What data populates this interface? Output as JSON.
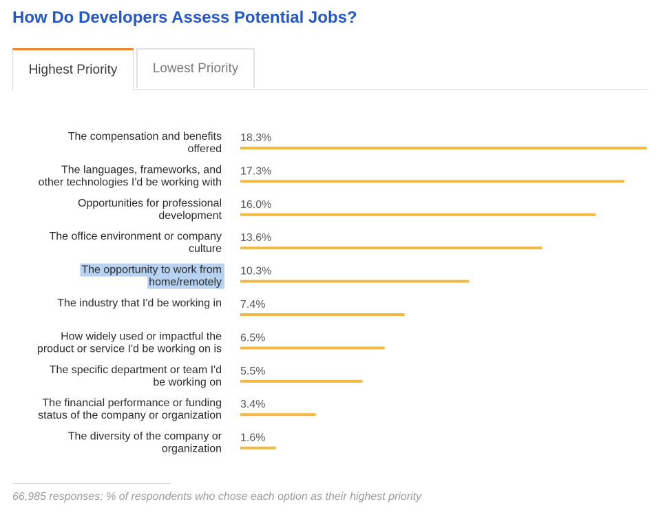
{
  "page": {
    "title": "How Do Developers Assess Potential Jobs?"
  },
  "tabs": [
    {
      "label": "Highest Priority",
      "active": true
    },
    {
      "label": "Lowest Priority",
      "active": false
    }
  ],
  "footnote": "66,985 responses; % of respondents who chose each option as their highest priority",
  "colors": {
    "title": "#2458c8",
    "bar": "#f4b840",
    "tab_accent": "#f48024",
    "label_text": "#2b2b2b",
    "value_text": "#5a5a5a",
    "highlight": "#b8d3f2"
  },
  "chart_data": {
    "type": "bar",
    "orientation": "horizontal",
    "title": "",
    "xlabel": "",
    "ylabel": "",
    "xlim": [
      0,
      18.3
    ],
    "grid": false,
    "legend": "none",
    "categories": [
      "The compensation and benefits offered",
      "The languages, frameworks, and other technologies I'd be working with",
      "Opportunities for professional development",
      "The office environment or company culture",
      "The opportunity to work from home/remotely",
      "The industry that I'd be working in",
      "How widely used or impactful the product or service I'd be working on is",
      "The specific department or team I'd be working on",
      "The financial performance or funding status of the company or organization",
      "The diversity of the company or organization"
    ],
    "label_lines": [
      [
        "The compensation and benefits",
        "offered"
      ],
      [
        "The languages, frameworks, and",
        "other technologies I'd be working with"
      ],
      [
        "Opportunities for professional",
        "development"
      ],
      [
        "The office environment or company",
        "culture"
      ],
      [
        "The opportunity to work from",
        "home/remotely"
      ],
      [
        "The industry that I'd be working in"
      ],
      [
        "How widely used or impactful the",
        "product or service I'd be working on is"
      ],
      [
        "The specific department or team I'd",
        "be working on"
      ],
      [
        "The financial performance or funding",
        "status of the company or organization"
      ],
      [
        "The diversity of the company or",
        "organization"
      ]
    ],
    "values": [
      18.3,
      17.3,
      16.0,
      13.6,
      10.3,
      7.4,
      6.5,
      5.5,
      3.4,
      1.6
    ],
    "value_labels": [
      "18.3%",
      "17.3%",
      "16.0%",
      "13.6%",
      "10.3%",
      "7.4%",
      "6.5%",
      "5.5%",
      "3.4%",
      "1.6%"
    ],
    "highlighted_index": 4
  }
}
